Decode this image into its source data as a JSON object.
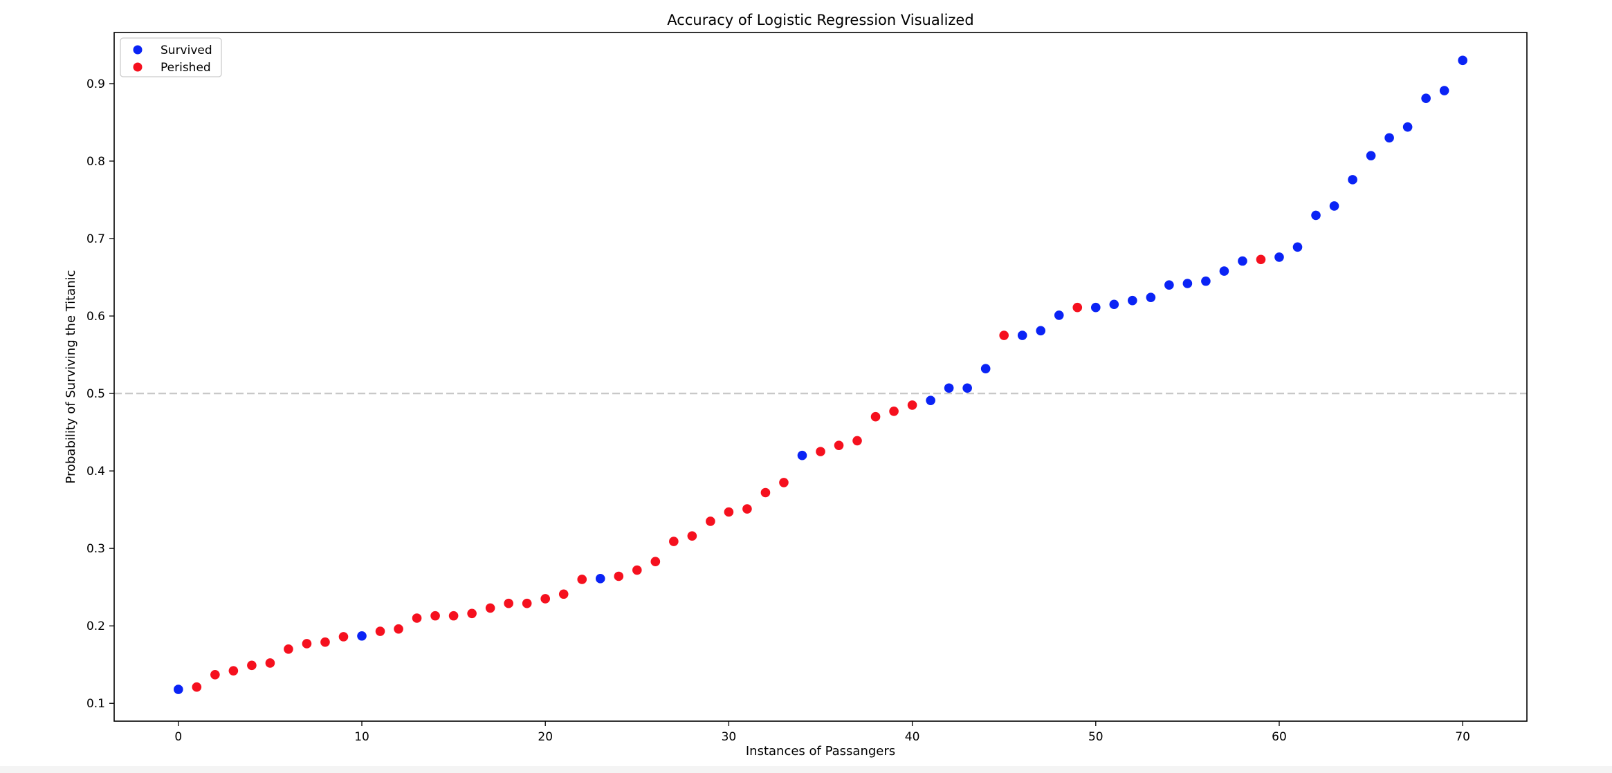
{
  "chart_data": {
    "type": "scatter",
    "title": "Accuracy of Logistic Regression Visualized",
    "xlabel": "Instances of Passangers",
    "ylabel": "Probability of Surviving the Titanic",
    "xlim": [
      -3.5,
      73.5
    ],
    "ylim": [
      0.077,
      0.966
    ],
    "xticks": [
      0,
      10,
      20,
      30,
      40,
      50,
      60,
      70
    ],
    "yticks": [
      0.1,
      0.2,
      0.3,
      0.4,
      0.5,
      0.6,
      0.7,
      0.8,
      0.9
    ],
    "grid": false,
    "legend_position": "top-left",
    "threshold_line": {
      "y": 0.5,
      "style": "dashed",
      "color": "#c8c8c8"
    },
    "series": [
      {
        "name": "Survived",
        "color": "#0a23f5",
        "x": [
          0,
          10,
          23,
          34,
          41,
          42,
          43,
          44,
          46,
          47,
          48,
          50,
          51,
          52,
          53,
          54,
          55,
          56,
          57,
          58,
          60,
          61,
          62,
          63,
          64,
          65,
          66,
          67,
          68,
          69,
          70
        ],
        "y": [
          0.118,
          0.187,
          0.261,
          0.42,
          0.491,
          0.507,
          0.507,
          0.532,
          0.575,
          0.581,
          0.601,
          0.611,
          0.615,
          0.62,
          0.624,
          0.64,
          0.642,
          0.645,
          0.658,
          0.671,
          0.676,
          0.689,
          0.73,
          0.742,
          0.776,
          0.807,
          0.83,
          0.844,
          0.881,
          0.891,
          0.93
        ]
      },
      {
        "name": "Perished",
        "color": "#f5101e",
        "x": [
          1,
          2,
          3,
          4,
          5,
          6,
          7,
          8,
          9,
          11,
          12,
          13,
          14,
          15,
          16,
          17,
          18,
          19,
          20,
          21,
          22,
          24,
          25,
          26,
          27,
          28,
          29,
          30,
          31,
          32,
          33,
          35,
          36,
          37,
          38,
          39,
          40,
          45,
          49,
          59
        ],
        "y": [
          0.121,
          0.137,
          0.142,
          0.149,
          0.152,
          0.17,
          0.177,
          0.179,
          0.186,
          0.193,
          0.196,
          0.21,
          0.213,
          0.213,
          0.216,
          0.223,
          0.229,
          0.229,
          0.235,
          0.241,
          0.26,
          0.264,
          0.272,
          0.283,
          0.309,
          0.316,
          0.335,
          0.347,
          0.351,
          0.372,
          0.385,
          0.425,
          0.433,
          0.439,
          0.47,
          0.477,
          0.485,
          0.575,
          0.611,
          0.673
        ]
      }
    ]
  }
}
